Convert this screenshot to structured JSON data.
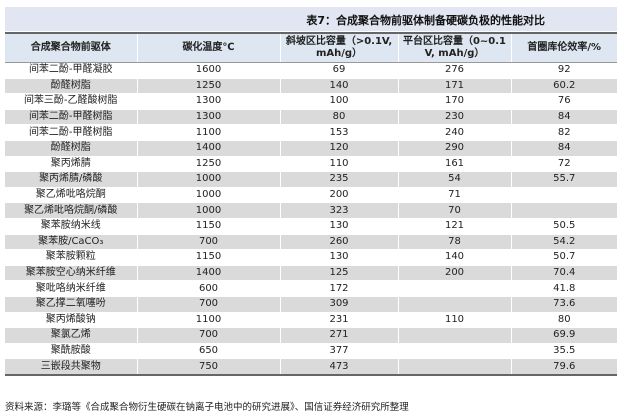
{
  "title": "表7：合成聚合物前驱体制备硬碳负极的性能对比",
  "headers": [
    "合成聚合物前驱体",
    "碳化温度℃",
    "斜坡区比容量（>0.1V, mAh/g）",
    "平台区比容量（0~0.1 V, mAh/g）",
    "首圈库伦效率/%"
  ],
  "rows": [
    [
      "间苯二酚-甲醛凝胶",
      "1600",
      "69",
      "276",
      "92"
    ],
    [
      "酚醛树脂",
      "1250",
      "140",
      "171",
      "60.2"
    ],
    [
      "间苯三酚-乙醛酸树脂",
      "1300",
      "100",
      "170",
      "76"
    ],
    [
      "间苯二酚-甲醛树脂",
      "1300",
      "80",
      "230",
      "84"
    ],
    [
      "间苯二酚-甲醛树脂",
      "1100",
      "153",
      "240",
      "82"
    ],
    [
      "酚醛树脂",
      "1400",
      "120",
      "290",
      "84"
    ],
    [
      "聚丙烯腈",
      "1250",
      "110",
      "161",
      "72"
    ],
    [
      "聚丙烯腈/磷酸",
      "1000",
      "235",
      "54",
      "55.7"
    ],
    [
      "聚乙烯吡咯烷酮",
      "1000",
      "200",
      "71",
      ""
    ],
    [
      "聚乙烯吡咯烷酮/磷酸",
      "1000",
      "323",
      "70",
      ""
    ],
    [
      "聚苯胺纳米线",
      "1150",
      "130",
      "121",
      "50.5"
    ],
    [
      "聚苯胺/CaCO₃",
      "700",
      "260",
      "78",
      "54.2"
    ],
    [
      "聚苯胺颗粒",
      "1150",
      "130",
      "140",
      "50.7"
    ],
    [
      "聚苯胺空心纳米纤维",
      "1400",
      "125",
      "200",
      "70.4"
    ],
    [
      "聚吡咯纳米纤维",
      "600",
      "172",
      "",
      "41.8"
    ],
    [
      "聚乙撑二氧噻吩",
      "700",
      "309",
      "",
      "73.6"
    ],
    [
      "聚丙烯酸钠",
      "1100",
      "231",
      "110",
      "80"
    ],
    [
      "聚氯乙烯",
      "700",
      "271",
      "",
      "69.9"
    ],
    [
      "聚酰胺酸",
      "650",
      "377",
      "",
      "35.5"
    ],
    [
      "三嵌段共聚物",
      "750",
      "473",
      "",
      "79.6"
    ]
  ],
  "source": "资料来源：李璐等《合成聚合物衍生硬碳在钠离子电池中的研究进展》、国信证券经济研究所整理"
}
